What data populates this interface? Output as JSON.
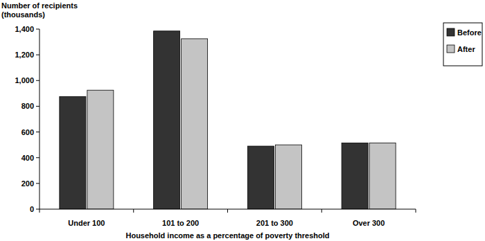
{
  "chart_data": {
    "type": "bar",
    "y_label": "Number of recipients (thousands)",
    "x_label": "Household income as a percentage of poverty threshold",
    "categories": [
      "Under 100",
      "101 to 200",
      "201 to 300",
      "Over 300"
    ],
    "series": [
      {
        "name": "Before",
        "color": "#333333",
        "values": [
          875,
          1385,
          490,
          515
        ]
      },
      {
        "name": "After",
        "color": "#c4c4c4",
        "values": [
          925,
          1325,
          500,
          515
        ]
      }
    ],
    "ylim": [
      0,
      1400
    ],
    "yticks": [
      0,
      200,
      400,
      600,
      800,
      {
        "value": 1000,
        "label": "1,000"
      },
      {
        "value": 1200,
        "label": "1,200"
      },
      {
        "value": 1400,
        "label": "1,400"
      }
    ],
    "grid": false,
    "legend": "right"
  }
}
